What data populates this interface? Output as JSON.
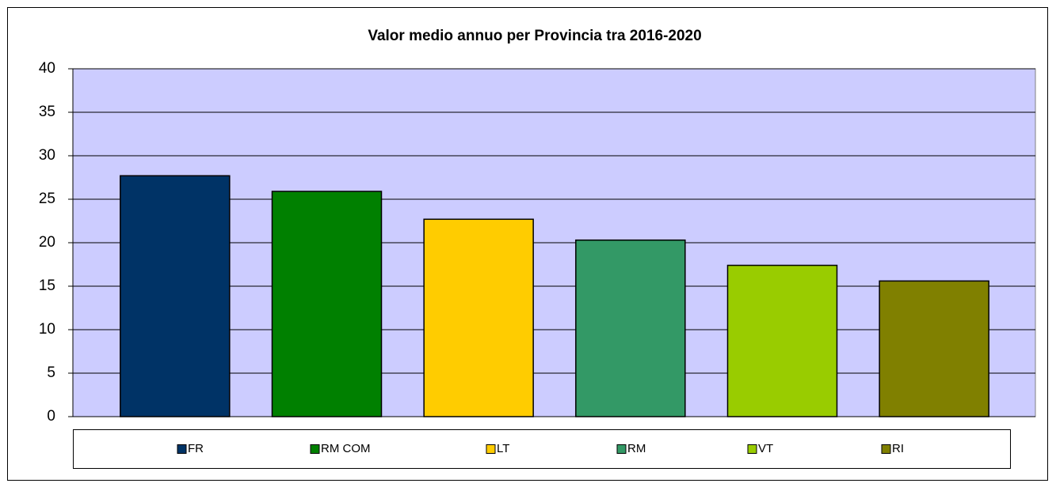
{
  "chart_data": {
    "type": "bar",
    "title": "Valor medio annuo per Provincia tra 2016-2020",
    "categories": [
      "FR",
      "RM COM",
      "LT",
      "RM",
      "VT",
      "RI"
    ],
    "values": [
      27.7,
      25.9,
      22.7,
      20.3,
      17.4,
      15.6
    ],
    "colors": [
      "#003366",
      "#008000",
      "#ffcc00",
      "#339966",
      "#99cc00",
      "#808000"
    ],
    "ylim": [
      0,
      40
    ],
    "yticks": [
      0,
      5,
      10,
      15,
      20,
      25,
      30,
      35,
      40
    ],
    "grid": true,
    "legend": "bottom"
  }
}
